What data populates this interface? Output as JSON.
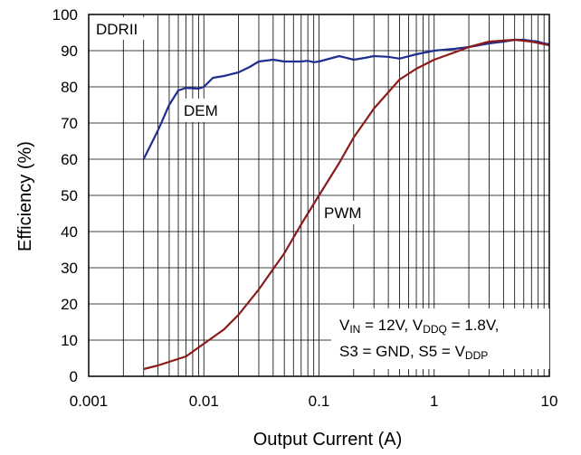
{
  "chart_data": {
    "type": "line",
    "title": "",
    "xlabel": "Output Current (A)",
    "ylabel": "Efficiency (%)",
    "xscale": "log",
    "xlim": [
      0.001,
      10
    ],
    "ylim": [
      0,
      100
    ],
    "grid": true,
    "x_ticks": [
      "0.001",
      "0.01",
      "0.1",
      "1",
      "10"
    ],
    "y_ticks": [
      "0",
      "10",
      "20",
      "30",
      "40",
      "50",
      "60",
      "70",
      "80",
      "90",
      "100"
    ],
    "series": [
      {
        "name": "DEM",
        "color": "#1f2f8f",
        "points": [
          [
            0.003,
            60
          ],
          [
            0.004,
            68
          ],
          [
            0.005,
            75
          ],
          [
            0.006,
            79
          ],
          [
            0.007,
            79.7
          ],
          [
            0.008,
            79.6
          ],
          [
            0.009,
            79.5
          ],
          [
            0.01,
            80
          ],
          [
            0.012,
            82.5
          ],
          [
            0.015,
            83
          ],
          [
            0.02,
            84
          ],
          [
            0.025,
            85.5
          ],
          [
            0.03,
            87
          ],
          [
            0.04,
            87.5
          ],
          [
            0.05,
            87
          ],
          [
            0.06,
            87
          ],
          [
            0.07,
            87
          ],
          [
            0.08,
            87.2
          ],
          [
            0.09,
            86.8
          ],
          [
            0.1,
            87
          ],
          [
            0.15,
            88.5
          ],
          [
            0.2,
            87.5
          ],
          [
            0.25,
            88
          ],
          [
            0.3,
            88.5
          ],
          [
            0.4,
            88.3
          ],
          [
            0.5,
            87.8
          ],
          [
            0.7,
            89
          ],
          [
            1,
            90
          ],
          [
            1.5,
            90.5
          ],
          [
            2,
            91
          ],
          [
            3,
            92
          ],
          [
            4,
            92.5
          ],
          [
            5,
            93
          ],
          [
            6,
            93
          ],
          [
            7,
            92.7
          ],
          [
            8,
            92.5
          ],
          [
            9,
            92
          ],
          [
            10,
            91.8
          ]
        ]
      },
      {
        "name": "PWM",
        "color": "#8b1a1a",
        "points": [
          [
            0.003,
            2
          ],
          [
            0.004,
            3
          ],
          [
            0.005,
            4
          ],
          [
            0.007,
            5.5
          ],
          [
            0.01,
            9
          ],
          [
            0.015,
            13
          ],
          [
            0.02,
            17
          ],
          [
            0.03,
            24
          ],
          [
            0.05,
            34
          ],
          [
            0.07,
            42
          ],
          [
            0.1,
            50
          ],
          [
            0.15,
            59
          ],
          [
            0.2,
            66
          ],
          [
            0.3,
            74
          ],
          [
            0.5,
            82
          ],
          [
            0.7,
            85
          ],
          [
            1,
            87.5
          ],
          [
            1.5,
            89.5
          ],
          [
            2,
            91
          ],
          [
            3,
            92.5
          ],
          [
            5,
            93
          ],
          [
            7,
            92.5
          ],
          [
            10,
            91.5
          ]
        ]
      }
    ],
    "annotations": {
      "board_label": "DDRII",
      "dem_label": "DEM",
      "pwm_label": "PWM",
      "condition_line1": {
        "v_in": "V",
        "v_in_sub": "IN",
        "v_in_val": " = 12V, ",
        "v_ddq": "V",
        "v_ddq_sub": "DDQ",
        "v_ddq_val": " = 1.8V,"
      },
      "condition_line2": {
        "prefix": "S3 = GND, S5 = ",
        "v_ddp": "V",
        "v_ddp_sub": "DDP"
      }
    }
  }
}
